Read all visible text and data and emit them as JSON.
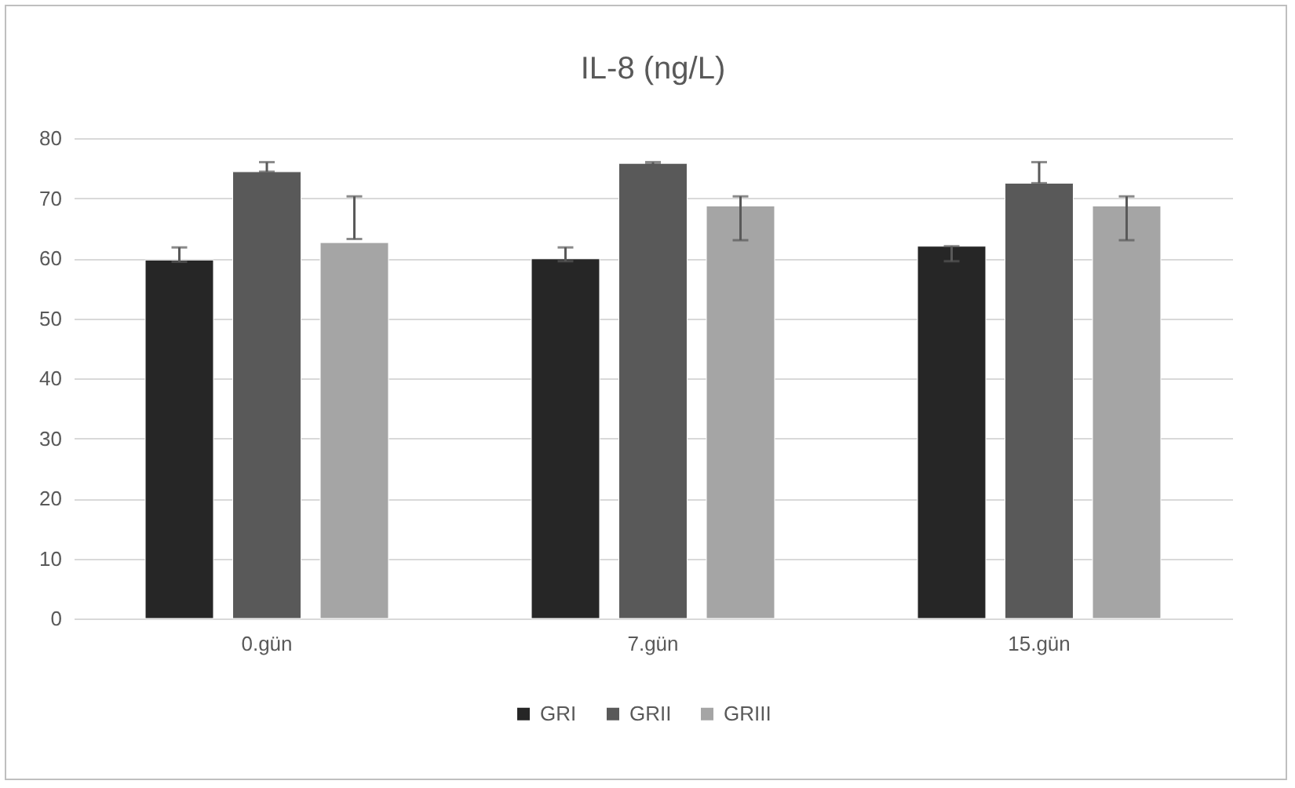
{
  "chart_data": {
    "type": "bar",
    "title": "IL-8 (ng/L)",
    "categories": [
      "0.gün",
      "7.gün",
      "15.gün"
    ],
    "series": [
      {
        "name": "GRI",
        "color": "#262626",
        "values": [
          59.7,
          59.9,
          62.0
        ],
        "errors": [
          [
            59.4,
            61.8
          ],
          [
            59.5,
            61.8
          ],
          [
            59.5,
            62.0
          ]
        ]
      },
      {
        "name": "GRII",
        "color": "#595959",
        "values": [
          74.4,
          75.8,
          72.5
        ],
        "errors": [
          [
            74.4,
            76.0
          ],
          [
            75.6,
            76.0
          ],
          [
            72.5,
            76.0
          ]
        ]
      },
      {
        "name": "GRIII",
        "color": "#a5a5a5",
        "values": [
          62.6,
          68.7,
          68.7
        ],
        "errors": [
          [
            63.2,
            70.3
          ],
          [
            63.0,
            70.3
          ],
          [
            63.0,
            70.3
          ]
        ]
      }
    ],
    "ylim": [
      0,
      80
    ],
    "yticks": [
      0,
      10,
      20,
      30,
      40,
      50,
      60,
      70,
      80
    ],
    "grid": "y",
    "legend": "bottom"
  }
}
